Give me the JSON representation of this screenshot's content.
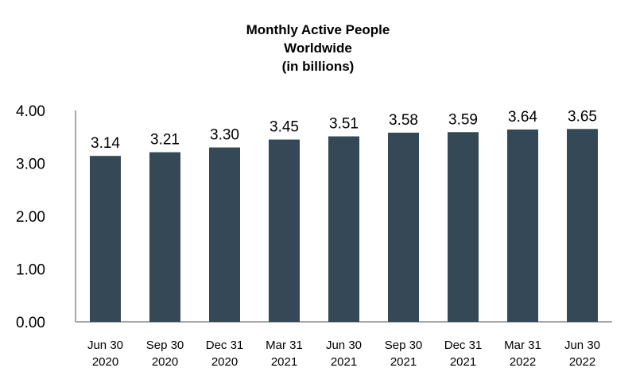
{
  "chart_data": {
    "type": "bar",
    "title": [
      "Monthly Active People",
      "Worldwide",
      "(in billions)"
    ],
    "categories": [
      [
        "Jun 30",
        "2020"
      ],
      [
        "Sep 30",
        "2020"
      ],
      [
        "Dec 31",
        "2020"
      ],
      [
        "Mar 31",
        "2021"
      ],
      [
        "Jun 30",
        "2021"
      ],
      [
        "Sep 30",
        "2021"
      ],
      [
        "Dec 31",
        "2021"
      ],
      [
        "Mar 31",
        "2022"
      ],
      [
        "Jun 30",
        "2022"
      ]
    ],
    "values": [
      3.14,
      3.21,
      3.3,
      3.45,
      3.51,
      3.58,
      3.59,
      3.64,
      3.65
    ],
    "value_labels": [
      "3.14",
      "3.21",
      "3.30",
      "3.45",
      "3.51",
      "3.58",
      "3.59",
      "3.64",
      "3.65"
    ],
    "yticks": [
      "0.00",
      "1.00",
      "2.00",
      "3.00",
      "4.00"
    ],
    "ytick_values": [
      0,
      1,
      2,
      3,
      4
    ],
    "ylim": [
      0,
      4
    ],
    "xlabel": "",
    "ylabel": "",
    "grid": false,
    "legend": "none",
    "bar_color": "#344955",
    "axis_color": "#8c8c8c"
  }
}
